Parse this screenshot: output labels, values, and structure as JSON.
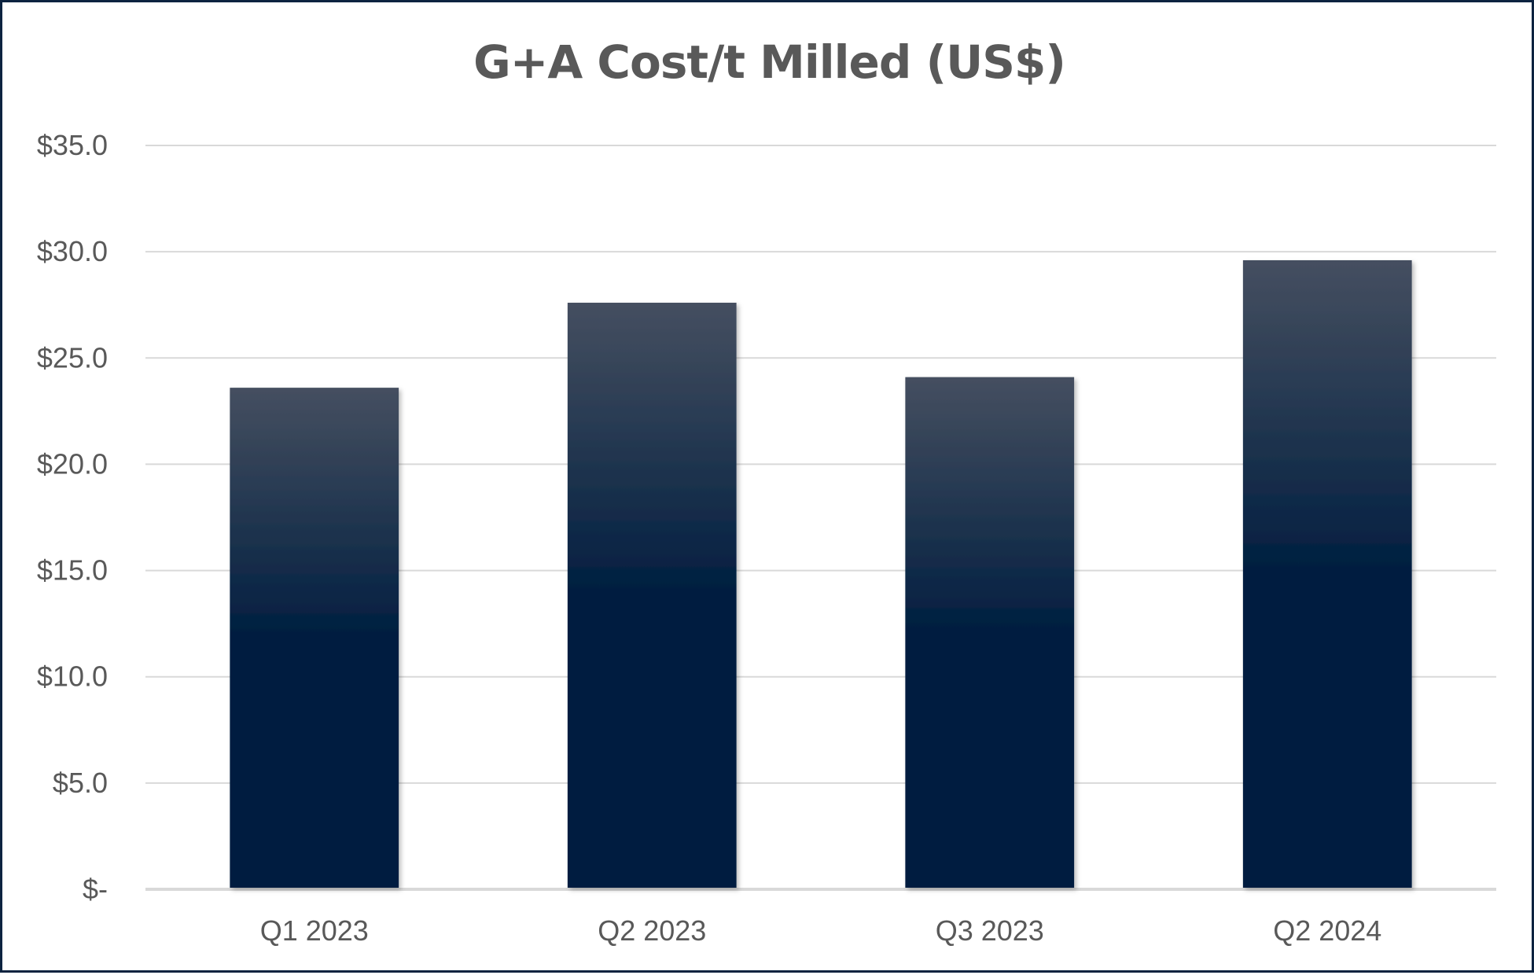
{
  "chart_data": {
    "type": "bar",
    "title": "G+A Cost/t Milled (US$)",
    "xlabel": "",
    "ylabel": "",
    "categories": [
      "Q1 2023",
      "Q2 2023",
      "Q3 2023",
      "Q2 2024"
    ],
    "values": [
      23.6,
      27.6,
      24.1,
      29.6
    ],
    "ylim": [
      0,
      35
    ],
    "yticks": [
      0,
      5,
      10,
      15,
      20,
      25,
      30,
      35
    ],
    "ytick_labels": [
      "$-",
      "$5.0",
      "$10.0",
      "$15.0",
      "$20.0",
      "$25.0",
      "$30.0",
      "$35.0"
    ],
    "grid": true,
    "legend": "none",
    "colors": {
      "bar_top": "#454f60",
      "bar_bottom": "#001e40",
      "gridline": "#d9d9d9",
      "text": "#595959",
      "border": "#0d2340"
    }
  }
}
